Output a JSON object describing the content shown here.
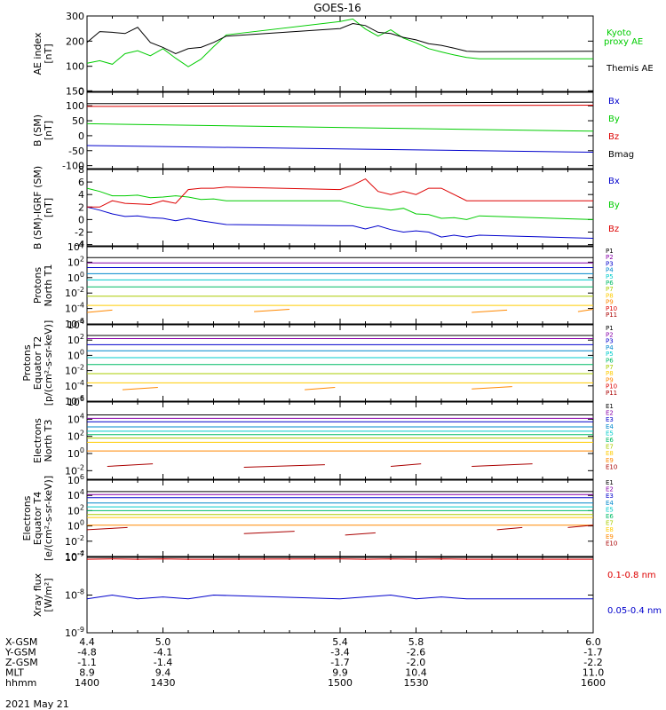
{
  "title": "GOES-16",
  "date": "2021 May 21",
  "chart_data": [
    {
      "type": "line",
      "ylabel": [
        "AE index",
        "[nT]"
      ],
      "ylim": [
        0,
        300
      ],
      "yscale": "linear",
      "yticks": [
        0,
        100,
        200,
        300
      ],
      "ytick_labels": [
        "0",
        "100",
        "200",
        "300"
      ],
      "x": [
        1400,
        1405,
        1410,
        1415,
        1420,
        1425,
        1430,
        1435,
        1440,
        1445,
        1450,
        1455,
        1500,
        1505,
        1510,
        1515,
        1520,
        1525,
        1530,
        1535,
        1540,
        1545,
        1550,
        1555,
        1600
      ],
      "series": [
        {
          "name": "Kyoto proxy AE",
          "color": "#00cc00",
          "values": [
            112,
            122,
            108,
            150,
            162,
            142,
            170,
            132,
            98,
            128,
            178,
            225,
            278,
            288,
            248,
            220,
            245,
            212,
            193,
            170,
            157,
            145,
            135,
            130,
            130
          ]
        },
        {
          "name": "Themis AE",
          "color": "#000000",
          "values": [
            195,
            238,
            235,
            230,
            255,
            195,
            175,
            150,
            170,
            175,
            195,
            220,
            250,
            270,
            262,
            235,
            230,
            215,
            205,
            190,
            183,
            172,
            160,
            158,
            160
          ]
        }
      ]
    },
    {
      "type": "line",
      "ylabel": [
        "B (SM)",
        "[nT]"
      ],
      "ylim": [
        -110,
        145
      ],
      "yscale": "linear",
      "yticks": [
        -100,
        -50,
        0,
        50,
        100,
        150
      ],
      "ytick_labels": [
        "-100",
        "-50",
        "0",
        "50",
        "100",
        "150"
      ],
      "x": [
        1400,
        1600
      ],
      "series": [
        {
          "name": "Bx",
          "color": "#0000cc",
          "values": [
            -33,
            -55
          ]
        },
        {
          "name": "By",
          "color": "#00cc00",
          "values": [
            40,
            15
          ]
        },
        {
          "name": "Bz",
          "color": "#dd0000",
          "values": [
            98,
            102
          ]
        },
        {
          "name": "Bmag",
          "color": "#000000",
          "values": [
            107,
            112
          ]
        }
      ]
    },
    {
      "type": "line",
      "ylabel": [
        "B (SM)-IGRF (SM)",
        "[nT]"
      ],
      "ylim": [
        -4.2,
        8
      ],
      "yscale": "linear",
      "yticks": [
        -4,
        -2,
        0,
        2,
        4,
        6,
        8
      ],
      "ytick_labels": [
        "-4",
        "-2",
        "0",
        "2",
        "4",
        "6",
        "8"
      ],
      "x": [
        1400,
        1405,
        1410,
        1415,
        1420,
        1425,
        1430,
        1435,
        1440,
        1445,
        1450,
        1455,
        1500,
        1505,
        1510,
        1515,
        1520,
        1525,
        1530,
        1535,
        1540,
        1545,
        1550,
        1555,
        1600
      ],
      "series": [
        {
          "name": "Bx",
          "color": "#0000cc",
          "values": [
            2.0,
            1.5,
            0.9,
            0.5,
            0.6,
            0.3,
            0.2,
            -0.2,
            0.2,
            -0.2,
            -0.5,
            -0.8,
            -1.0,
            -1.0,
            -1.5,
            -1.0,
            -1.6,
            -2.0,
            -1.8,
            -2.0,
            -2.8,
            -2.5,
            -2.8,
            -2.5,
            -3.0
          ]
        },
        {
          "name": "By",
          "color": "#00cc00",
          "values": [
            5.0,
            4.5,
            3.8,
            3.8,
            3.9,
            3.5,
            3.6,
            3.8,
            3.6,
            3.2,
            3.3,
            3.0,
            3.0,
            2.5,
            2.0,
            1.8,
            1.5,
            1.8,
            0.9,
            0.8,
            0.2,
            0.3,
            0.0,
            0.6,
            0.0
          ]
        },
        {
          "name": "Bz",
          "color": "#dd0000",
          "values": [
            2.0,
            2.0,
            3.0,
            2.6,
            2.5,
            2.4,
            3.0,
            2.6,
            4.8,
            5.0,
            5.0,
            5.2,
            4.8,
            5.5,
            6.5,
            4.5,
            4.0,
            4.5,
            4.0,
            5.0,
            5.0,
            4.0,
            3.0,
            3.0,
            3.0
          ]
        }
      ]
    },
    {
      "type": "line",
      "ylabel": [
        "Protons",
        "North T1"
      ],
      "ylim": [
        -6,
        4
      ],
      "yscale": "log",
      "yticks": [
        -6,
        -4,
        -2,
        0,
        2,
        4
      ],
      "ytick_labels": [
        "10^-6",
        "10^-4",
        "10^-2",
        "10^0",
        "10^2",
        "10^4"
      ],
      "x": [
        1400,
        1600
      ],
      "series": [
        {
          "name": "P1",
          "color": "#000000",
          "values": [
            2.6,
            2.6
          ]
        },
        {
          "name": "P2",
          "color": "#8800aa",
          "values": [
            1.9,
            1.9
          ]
        },
        {
          "name": "P3",
          "color": "#0000cc",
          "values": [
            1.3,
            1.3
          ]
        },
        {
          "name": "P4",
          "color": "#0088cc",
          "values": [
            0.5,
            0.5
          ]
        },
        {
          "name": "P5",
          "color": "#00cccc",
          "values": [
            -0.3,
            -0.3
          ]
        },
        {
          "name": "P6",
          "color": "#00bb66",
          "values": [
            -1.2,
            -1.2
          ]
        },
        {
          "name": "P7",
          "color": "#aacc00",
          "values": [
            -2.4,
            -2.4
          ]
        },
        {
          "name": "P8",
          "color": "#ffcc00",
          "values": [
            -3.6,
            -3.6
          ]
        },
        {
          "name": "P9",
          "color": "#ff8800"
        },
        {
          "name": "P10",
          "color": "#dd0000"
        },
        {
          "name": "P11",
          "color": "#aa0000"
        }
      ]
    },
    {
      "type": "line",
      "ylabel": [
        "Protons",
        "Equator T2",
        "[p/(cm²-s-sr-keV)]"
      ],
      "ylim": [
        -6,
        4
      ],
      "yscale": "log",
      "yticks": [
        -6,
        -4,
        -2,
        0,
        2,
        4
      ],
      "ytick_labels": [
        "10^-6",
        "10^-4",
        "10^-2",
        "10^0",
        "10^2",
        "10^4"
      ],
      "x": [
        1400,
        1600
      ],
      "series": [
        {
          "name": "P1",
          "color": "#000000",
          "values": [
            2.6,
            2.6
          ]
        },
        {
          "name": "P2",
          "color": "#8800aa",
          "values": [
            2.2,
            2.2
          ]
        },
        {
          "name": "P3",
          "color": "#0000cc",
          "values": [
            1.4,
            1.4
          ]
        },
        {
          "name": "P4",
          "color": "#0088cc",
          "values": [
            0.6,
            0.6
          ]
        },
        {
          "name": "P5",
          "color": "#00cccc",
          "values": [
            -0.3,
            -0.3
          ]
        },
        {
          "name": "P6",
          "color": "#00bb66",
          "values": [
            -1.2,
            -1.2
          ]
        },
        {
          "name": "P7",
          "color": "#aacc00",
          "values": [
            -2.4,
            -2.4
          ]
        },
        {
          "name": "P8",
          "color": "#ffcc00",
          "values": [
            -3.6,
            -3.6
          ]
        },
        {
          "name": "P9",
          "color": "#ff8800"
        },
        {
          "name": "P10",
          "color": "#dd0000"
        },
        {
          "name": "P11",
          "color": "#aa0000"
        }
      ]
    },
    {
      "type": "line",
      "ylabel": [
        "Electrons",
        "North T3"
      ],
      "ylim": [
        -3,
        6
      ],
      "yscale": "log",
      "yticks": [
        -2,
        0,
        2,
        4,
        6
      ],
      "ytick_labels": [
        "10^-2",
        "10^0",
        "10^2",
        "10^4",
        "10^6"
      ],
      "x": [
        1400,
        1600
      ],
      "series": [
        {
          "name": "E1",
          "color": "#000000",
          "values": [
            4.5,
            4.5
          ]
        },
        {
          "name": "E2",
          "color": "#8800aa",
          "values": [
            4.1,
            4.1
          ]
        },
        {
          "name": "E3",
          "color": "#0000cc",
          "values": [
            3.7,
            3.7
          ]
        },
        {
          "name": "E4",
          "color": "#0088cc",
          "values": [
            3.1,
            3.1
          ]
        },
        {
          "name": "E5",
          "color": "#00cccc",
          "values": [
            2.6,
            2.6
          ]
        },
        {
          "name": "E6",
          "color": "#00bb66",
          "values": [
            2.2,
            2.2
          ]
        },
        {
          "name": "E7",
          "color": "#aacc00",
          "values": [
            1.8,
            1.8
          ]
        },
        {
          "name": "E8",
          "color": "#ffcc00",
          "values": [
            1.3,
            1.3
          ]
        },
        {
          "name": "E9",
          "color": "#ff8800",
          "values": [
            0.3,
            0.3
          ]
        },
        {
          "name": "E10",
          "color": "#aa0000"
        }
      ]
    },
    {
      "type": "line",
      "ylabel": [
        "Electrons",
        "Equator T4",
        "[e/(cm²-s-sr-keV)]"
      ],
      "ylim": [
        -4,
        6
      ],
      "yscale": "log",
      "yticks": [
        -4,
        -2,
        0,
        2,
        4,
        6
      ],
      "ytick_labels": [
        "10^-4",
        "10^-2",
        "10^0",
        "10^2",
        "10^4",
        "10^6"
      ],
      "x": [
        1400,
        1600
      ],
      "series": [
        {
          "name": "E1",
          "color": "#000000",
          "values": [
            4.5,
            4.5
          ]
        },
        {
          "name": "E2",
          "color": "#8800aa",
          "values": [
            4.1,
            4.1
          ]
        },
        {
          "name": "E3",
          "color": "#0000cc",
          "values": [
            3.7,
            3.7
          ]
        },
        {
          "name": "E4",
          "color": "#0088cc",
          "values": [
            3.0,
            3.0
          ]
        },
        {
          "name": "E5",
          "color": "#00cccc",
          "values": [
            2.5,
            2.5
          ]
        },
        {
          "name": "E6",
          "color": "#00bb66",
          "values": [
            2.0,
            2.0
          ]
        },
        {
          "name": "E7",
          "color": "#aacc00",
          "values": [
            1.5,
            1.5
          ]
        },
        {
          "name": "E8",
          "color": "#ffcc00",
          "values": [
            1.1,
            1.1
          ]
        },
        {
          "name": "E9",
          "color": "#ff8800",
          "values": [
            0.1,
            0.1
          ]
        },
        {
          "name": "E10",
          "color": "#aa0000"
        }
      ]
    },
    {
      "type": "line",
      "ylabel": [
        "Xray flux",
        "[W/m²]"
      ],
      "ylim": [
        -9,
        -7
      ],
      "yscale": "log",
      "yticks": [
        -9,
        -8,
        -7
      ],
      "ytick_labels": [
        "10^-9",
        "10^-8",
        "10^-7"
      ],
      "x": [
        1400,
        1410,
        1420,
        1430,
        1440,
        1450,
        1500,
        1510,
        1520,
        1530,
        1540,
        1550,
        1600
      ],
      "series": [
        {
          "name": "0.1-0.8 nm",
          "color": "#dd0000",
          "values": [
            -7.05,
            -7.04,
            -7.05,
            -7.04,
            -7.05,
            -7.05,
            -7.04,
            -7.05,
            -7.04,
            -7.05,
            -7.04,
            -7.05,
            -7.05
          ]
        },
        {
          "name": "0.05-0.4 nm",
          "color": "#0000cc",
          "values": [
            -8.1,
            -8.0,
            -8.1,
            -8.05,
            -8.1,
            -8.0,
            -8.1,
            -8.05,
            -8.0,
            -8.1,
            -8.05,
            -8.1,
            -8.1
          ]
        }
      ]
    }
  ],
  "x_axis": {
    "xlim": [
      1400,
      1600
    ],
    "rows": [
      {
        "label": "X-GSM",
        "values": [
          "4.4",
          "5.0",
          "5.4",
          "5.8",
          "6.0"
        ]
      },
      {
        "label": "Y-GSM",
        "values": [
          "-4.8",
          "-4.1",
          "-3.4",
          "-2.6",
          "-1.7"
        ]
      },
      {
        "label": "Z-GSM",
        "values": [
          "-1.1",
          "-1.4",
          "-1.7",
          "-2.0",
          "-2.2"
        ]
      },
      {
        "label": "MLT",
        "values": [
          "8.9",
          "9.4",
          "9.9",
          "10.4",
          "11.0"
        ]
      },
      {
        "label": "hhmm",
        "values": [
          "1400",
          "1430",
          "1500",
          "1530",
          "1600"
        ]
      }
    ],
    "major_ticks": [
      1400,
      1430,
      1500,
      1530,
      1600
    ]
  },
  "legend_labels": {
    "kyoto": [
      "Kyoto",
      "proxy AE"
    ],
    "themis": "Themis AE",
    "xray_long": "0.1-0.8 nm",
    "xray_short": "0.05-0.4 nm"
  }
}
